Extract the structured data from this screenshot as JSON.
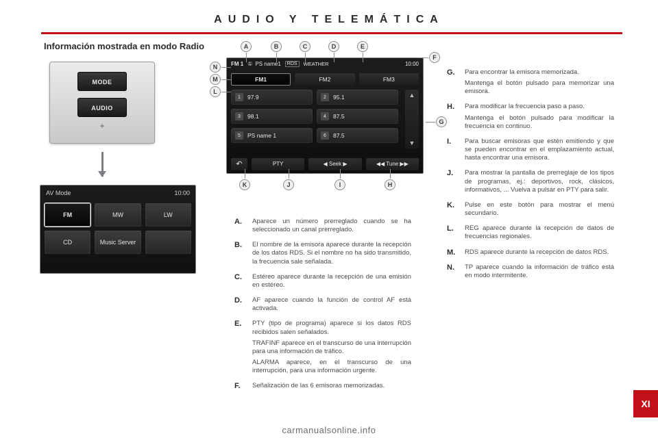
{
  "colors": {
    "accent_red": "#c1101a",
    "panel_gray": "#e7e8e9",
    "screen_bg": "#141414",
    "text_dark": "#2b2b2b",
    "text_body": "#4a4a4a"
  },
  "page": {
    "title": "AUDIO Y TELEMÁTICA",
    "subtitle": "Información mostrada en modo Radio",
    "chapter": "XI",
    "footer_url": "carmanualsonline.info"
  },
  "hw": {
    "mode": "MODE",
    "audio": "AUDIO",
    "plus": "+"
  },
  "av_screen": {
    "heading": "AV Mode",
    "clock": "10:00",
    "grid": [
      {
        "label": "FM",
        "selected": true
      },
      {
        "label": "MW",
        "selected": false
      },
      {
        "label": "LW",
        "selected": false
      },
      {
        "label": "CD",
        "selected": false
      },
      {
        "label": "Music Server",
        "selected": false
      },
      {
        "label": "",
        "selected": false
      }
    ]
  },
  "radio": {
    "band_label": "FM 1",
    "preset_name": "PS name1",
    "badge_rds": "RDS",
    "pty_genre": "WEATHER",
    "clock": "10:00",
    "bands": [
      {
        "label": "FM1",
        "selected": true
      },
      {
        "label": "FM2",
        "selected": false
      },
      {
        "label": "FM3",
        "selected": false
      }
    ],
    "presets": [
      {
        "num": "1",
        "label": "97.9"
      },
      {
        "num": "2",
        "label": "95.1"
      },
      {
        "num": "3",
        "label": "98.1"
      },
      {
        "num": "4",
        "label": "87.5"
      },
      {
        "num": "5",
        "label": "PS name 1"
      },
      {
        "num": "6",
        "label": "87.5"
      }
    ],
    "scroll_up": "▲",
    "scroll_down": "▼",
    "footer": {
      "back": "↶",
      "pty": "PTY",
      "seek": "◀  Seek  ▶",
      "tune": "◀◀ Tune ▶▶"
    }
  },
  "leaders": {
    "A": "A",
    "B": "B",
    "C": "C",
    "D": "D",
    "E": "E",
    "F": "F",
    "G": "G",
    "H": "H",
    "I": "I",
    "J": "J",
    "K": "K",
    "L": "L",
    "M": "M",
    "N": "N"
  },
  "col1": [
    {
      "key": "A.",
      "paras": [
        "Aparece un número prerreglado cuando se ha seleccionado un canal prerreglado."
      ]
    },
    {
      "key": "B.",
      "paras": [
        "El nombre de la emisora aparece durante la recepción de los datos RDS. Si el nombre no ha sido transmitido, la frecuencia sale señalada."
      ]
    },
    {
      "key": "C.",
      "paras": [
        "Estéreo aparece durante la recepción de una emisión en estéreo."
      ]
    },
    {
      "key": "D.",
      "paras": [
        "AF aparece cuando la función de control AF está activada."
      ]
    },
    {
      "key": "E.",
      "paras": [
        "PTY (tipo de programa) aparece si los datos RDS recibidos salen señalados.",
        "TRAFINF aparece en el transcurso de una interrupción para una información de tráfico.",
        "ALARMA aparece, en el transcurso de una interrupción, para una información urgente."
      ]
    },
    {
      "key": "F.",
      "paras": [
        "Señalización de las 6 emisoras memorizadas."
      ]
    }
  ],
  "col2": [
    {
      "key": "G.",
      "paras": [
        "Para encontrar la emisora memorizada.",
        "Mantenga el botón pulsado para memorizar una emisora."
      ]
    },
    {
      "key": "H.",
      "paras": [
        "Para modificar la frecuencia paso a paso.",
        "Mantenga el botón pulsado para modificar la frecuencia en continuo."
      ]
    },
    {
      "key": "I.",
      "paras": [
        "Para buscar emisoras que estén emitiendo y que se pueden encontrar en el emplazamiento actual, hasta encontrar una emisora."
      ]
    },
    {
      "key": "J.",
      "paras": [
        "Para mostrar la pantalla de prerreglaje de los tipos de programas, ej.: deportivos, rock, clásicos, informativos, ... Vuelva a pulsar en PTY para salir."
      ]
    },
    {
      "key": "K.",
      "paras": [
        "Pulse en este botón para mostrar el menú secundario."
      ]
    },
    {
      "key": "L.",
      "paras": [
        "REG aparece durante la recepción de datos de frecuencias regionales."
      ]
    },
    {
      "key": "M.",
      "paras": [
        "RDS aparece durante la recepción de datos RDS."
      ]
    },
    {
      "key": "N.",
      "paras": [
        "TP aparece cuando la información de tráfico está en modo intermitente."
      ]
    }
  ]
}
